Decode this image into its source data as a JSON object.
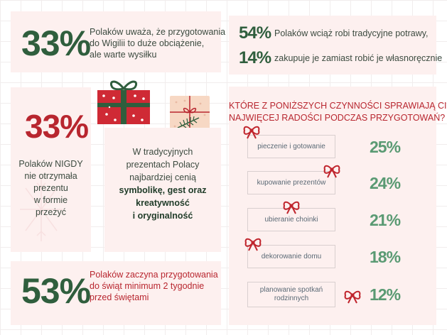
{
  "stat1": {
    "value": "33%",
    "lines": [
      "Polaków uważa, że przygotowania",
      "do Wigilii to duże obciążenie,",
      "ale warte wysiłku"
    ]
  },
  "stat2": {
    "value": "33%",
    "lines": [
      "Polaków NIGDY",
      "nie otrzymała",
      "prezentu",
      "w formie",
      "przeżyć"
    ]
  },
  "gifts": {
    "lines": [
      "W tradycyjnych",
      "prezentach Polacy",
      "najbardziej cenią"
    ],
    "bold_lines": [
      "symbolikę, gest oraz",
      "kreatywność",
      "i oryginalność"
    ]
  },
  "stat3": {
    "value": "53%",
    "lines": [
      "Polaków zaczyna przygotowania",
      "do świąt minimum 2 tygodnie",
      "przed świętami"
    ]
  },
  "food": {
    "value1": "54%",
    "text1": "Polaków wciąż robi tradycyjne potrawy,",
    "value2": "14%",
    "text2": "zakupuje je zamiast robić je własnoręcznie"
  },
  "joy": {
    "title_lines": [
      "KTÓRE Z PONIŻSZYCH CZYNNOŚCI SPRAWIAJĄ CI",
      "NAJWIĘCEJ RADOŚCI PODCZAS PRZYGOTOWAŃ?"
    ],
    "items": [
      {
        "label": "pieczenie i gotowanie",
        "value": "25%"
      },
      {
        "label": "kupowanie prezentów",
        "value": "24%"
      },
      {
        "label": "ubieranie choinki",
        "value": "21%"
      },
      {
        "label": "dekorowanie domu",
        "value": "18%"
      },
      {
        "label": "planowanie spotkań rodzinnych",
        "value": "12%"
      }
    ]
  },
  "colors": {
    "green": "#2f5e3d",
    "red": "#b8262f",
    "card": "#fdf0ef",
    "percent_green": "#5a9a73"
  }
}
